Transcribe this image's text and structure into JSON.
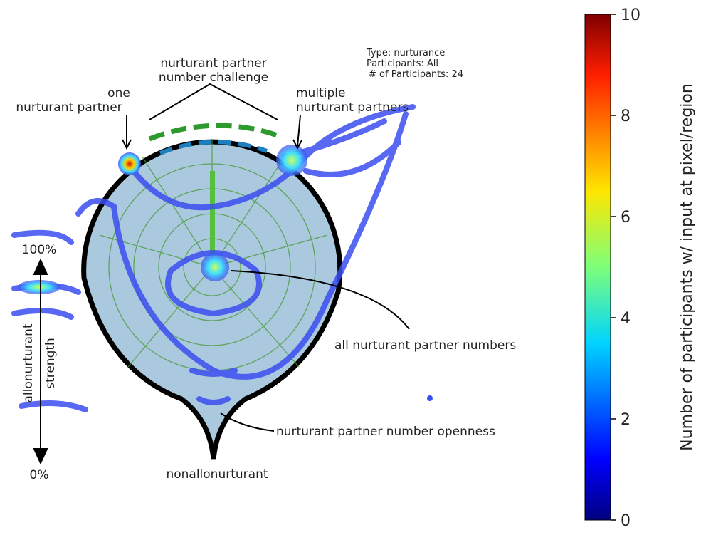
{
  "diagram": {
    "challenge": [
      "nurturant partner",
      "number challenge"
    ],
    "one": [
      "one",
      "nurturant partner"
    ],
    "multiple": [
      "multiple",
      "nurturant partners"
    ],
    "axis_top": "100%",
    "axis_bottom": "0%",
    "axis_label": [
      "allonurturant",
      "strength"
    ],
    "all": "all nurturant partner numbers",
    "openness": "nurturant partner number openness",
    "bottom": "nonallonurturant"
  },
  "info": [
    "Type: nurturance",
    "Participants: All",
    "# of Participants: 24"
  ],
  "chart_data": {
    "type": "colorbar",
    "label": "Number of participants w/ input at pixel/region",
    "ylim": [
      0,
      10
    ],
    "yticks": [
      0,
      2,
      4,
      6,
      8,
      10
    ]
  }
}
